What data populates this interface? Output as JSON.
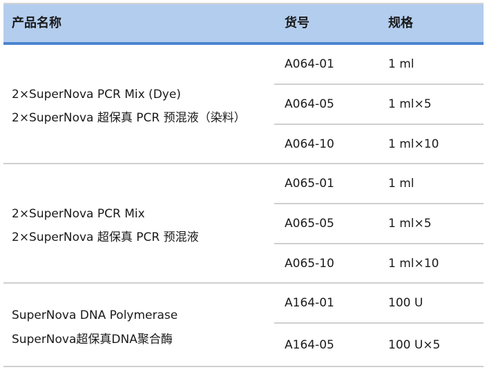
{
  "header": {
    "name": "产品名称",
    "code": "货号",
    "spec": "规格"
  },
  "colors": {
    "header_bg": "#b3cdee",
    "header_line": "#4a84cf",
    "divider": "#cfcfcf"
  },
  "groups": [
    {
      "name_en": "2×SuperNova PCR Mix (Dye)",
      "name_cn": "2×SuperNova 超保真 PCR 预混液（染料）",
      "rows": [
        {
          "code": "A064-01",
          "spec": "1 ml"
        },
        {
          "code": "A064-05",
          "spec": "1 ml×5"
        },
        {
          "code": "A064-10",
          "spec": "1 ml×10"
        }
      ]
    },
    {
      "name_en": "2×SuperNova PCR Mix",
      "name_cn": "2×SuperNova 超保真 PCR 预混液",
      "rows": [
        {
          "code": "A065-01",
          "spec": "1 ml"
        },
        {
          "code": "A065-05",
          "spec": "1 ml×5"
        },
        {
          "code": "A065-10",
          "spec": "1 ml×10"
        }
      ]
    },
    {
      "name_en": "SuperNova DNA Polymerase",
      "name_cn": "SuperNova超保真DNA聚合酶",
      "rows": [
        {
          "code": "A164-01",
          "spec": "100 U"
        },
        {
          "code": "A164-05",
          "spec": "100 U×5"
        }
      ]
    }
  ]
}
